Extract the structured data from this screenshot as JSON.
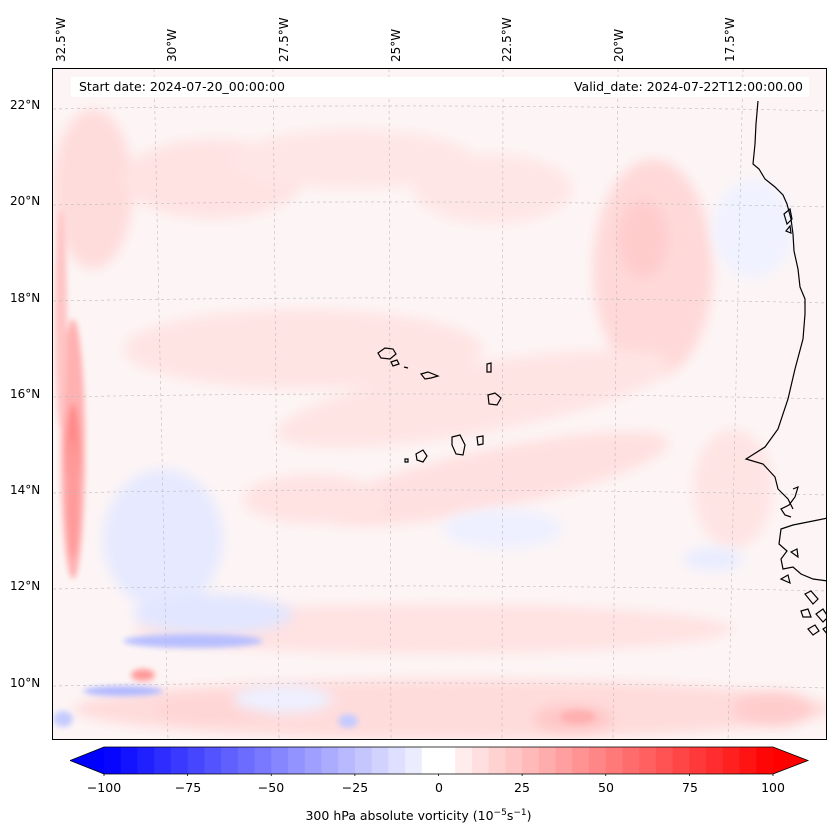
{
  "map": {
    "lon_labels": [
      "32.5°W",
      "30°W",
      "27.5°W",
      "25°W",
      "22.5°W",
      "20°W",
      "17.5°W"
    ],
    "lat_labels": [
      "22°N",
      "20°N",
      "18°N",
      "16°N",
      "14°N",
      "12°N",
      "10°N"
    ],
    "start_date": "Start date: 2024-07-20_00:00:00",
    "valid_date": "Valid_date: 2024-07-22T12:00:00.00",
    "colors": {
      "positive": "#ff0000",
      "negative": "#0000ff",
      "coast": "#000000",
      "grid": "#bbbbbb"
    }
  },
  "colorbar": {
    "ticks": [
      "−100",
      "−75",
      "−50",
      "−25",
      "0",
      "25",
      "50",
      "75",
      "100"
    ],
    "values": [
      -100,
      -75,
      -50,
      -25,
      0,
      25,
      50,
      75,
      100
    ],
    "label_prefix": "300 hPa absolute vorticity (10",
    "label_exp1": "−5",
    "label_mid": "s",
    "label_exp2": "−1",
    "label_suffix": ")"
  }
}
